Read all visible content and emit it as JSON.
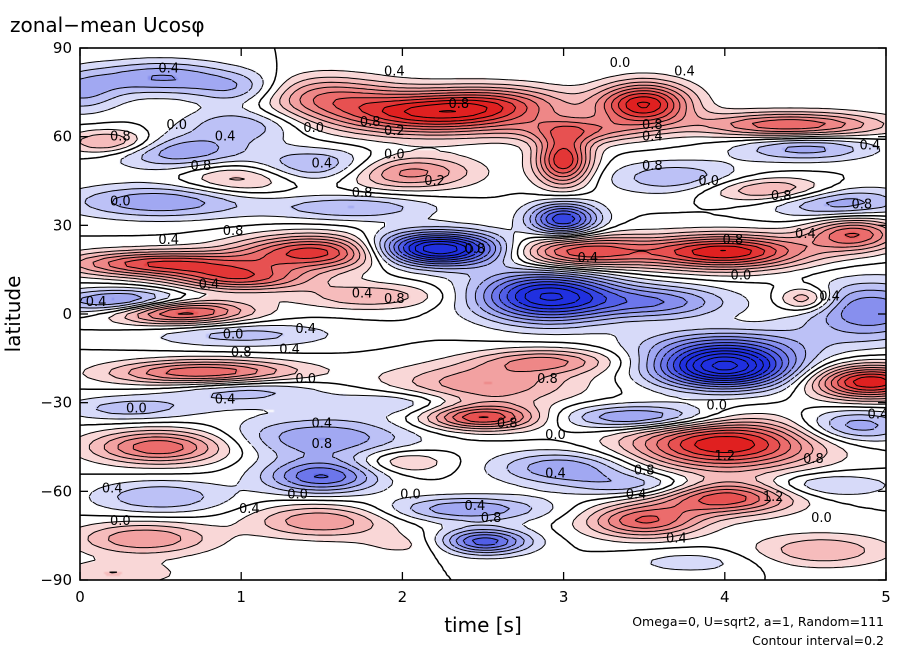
{
  "chart_data": {
    "type": "heatmap",
    "title": "zonal−mean Ucosφ",
    "xlabel": "time [s]",
    "ylabel": "latitude",
    "xlim": [
      0,
      5
    ],
    "ylim": [
      -90,
      90
    ],
    "x_ticks": [
      0,
      1,
      2,
      3,
      4,
      5
    ],
    "y_ticks": [
      90,
      60,
      30,
      0,
      -30,
      -60,
      -90
    ],
    "x_tick_labels": [
      "0",
      "1",
      "2",
      "3",
      "4",
      "5"
    ],
    "y_tick_labels": [
      "90",
      "60",
      "30",
      "0",
      "−30",
      "−60",
      "−90"
    ],
    "contour_interval": 0.2,
    "positive_color": "#e02020",
    "negative_color": "#2030e0",
    "negative_contours_dashed": true,
    "grid": false,
    "annotation_lines": [
      "Omega=0, U=sqrt2, a=1, Random=111",
      "Contour interval=0.2"
    ],
    "features": [
      {
        "t": 0.0,
        "lat": 75,
        "value": -0.6,
        "st": 0.18,
        "slat": 5
      },
      {
        "t": 0.5,
        "lat": 80,
        "value": -0.8,
        "st": 0.3,
        "slat": 4
      },
      {
        "t": 1.0,
        "lat": 76,
        "value": -0.6,
        "st": 0.2,
        "slat": 4
      },
      {
        "t": 1.0,
        "lat": 64,
        "value": -0.6,
        "st": 0.25,
        "slat": 4
      },
      {
        "t": 1.5,
        "lat": 74,
        "value": 0.8,
        "st": 0.3,
        "slat": 5
      },
      {
        "t": 2.2,
        "lat": 68,
        "value": 1.8,
        "st": 0.45,
        "slat": 5
      },
      {
        "t": 2.6,
        "lat": 72,
        "value": 0.6,
        "st": 0.3,
        "slat": 4
      },
      {
        "t": 3.5,
        "lat": 71,
        "value": 1.8,
        "st": 0.2,
        "slat": 5
      },
      {
        "t": 3.1,
        "lat": 62,
        "value": 0.8,
        "st": 0.25,
        "slat": 3
      },
      {
        "t": 4.4,
        "lat": 64,
        "value": 1.2,
        "st": 0.4,
        "slat": 3
      },
      {
        "t": 4.5,
        "lat": 56,
        "value": -0.7,
        "st": 0.3,
        "slat": 3
      },
      {
        "t": 3.0,
        "lat": 52,
        "value": 1.6,
        "st": 0.12,
        "slat": 6
      },
      {
        "t": 2.0,
        "lat": 48,
        "value": 1.0,
        "st": 0.3,
        "slat": 4
      },
      {
        "t": 1.5,
        "lat": 50,
        "value": -0.8,
        "st": 0.3,
        "slat": 4
      },
      {
        "t": 0.6,
        "lat": 55,
        "value": -0.8,
        "st": 0.3,
        "slat": 4
      },
      {
        "t": 0.2,
        "lat": 58,
        "value": 0.8,
        "st": 0.2,
        "slat": 3
      },
      {
        "t": 1.0,
        "lat": 46,
        "value": 0.6,
        "st": 0.25,
        "slat": 4
      },
      {
        "t": 3.7,
        "lat": 46,
        "value": -0.6,
        "st": 0.3,
        "slat": 4
      },
      {
        "t": 4.3,
        "lat": 42,
        "value": 0.8,
        "st": 0.3,
        "slat": 3
      },
      {
        "t": 4.7,
        "lat": 38,
        "value": -0.8,
        "st": 0.3,
        "slat": 4
      },
      {
        "t": 0.5,
        "lat": 38,
        "value": -0.8,
        "st": 0.4,
        "slat": 4
      },
      {
        "t": 3.0,
        "lat": 32,
        "value": -1.6,
        "st": 0.15,
        "slat": 4
      },
      {
        "t": 1.7,
        "lat": 36,
        "value": -0.6,
        "st": 0.35,
        "slat": 3
      },
      {
        "t": 1.5,
        "lat": 21,
        "value": 1.6,
        "st": 0.35,
        "slat": 4
      },
      {
        "t": 2.2,
        "lat": 22,
        "value": -2.4,
        "st": 0.3,
        "slat": 4
      },
      {
        "t": 3.1,
        "lat": 21,
        "value": 1.4,
        "st": 0.3,
        "slat": 4
      },
      {
        "t": 4.0,
        "lat": 21,
        "value": 1.8,
        "st": 0.35,
        "slat": 4
      },
      {
        "t": 4.8,
        "lat": 27,
        "value": 1.2,
        "st": 0.2,
        "slat": 4
      },
      {
        "t": 0.5,
        "lat": 17,
        "value": 1.4,
        "st": 0.4,
        "slat": 3
      },
      {
        "t": 1.0,
        "lat": 12,
        "value": 1.2,
        "st": 0.3,
        "slat": 3
      },
      {
        "t": 0.3,
        "lat": 4,
        "value": -1.2,
        "st": 0.3,
        "slat": 3
      },
      {
        "t": 0.6,
        "lat": 1,
        "value": 1.6,
        "st": 0.3,
        "slat": 3
      },
      {
        "t": 1.8,
        "lat": 6,
        "value": 0.6,
        "st": 0.3,
        "slat": 3
      },
      {
        "t": 2.9,
        "lat": 6,
        "value": -2.0,
        "st": 0.3,
        "slat": 6
      },
      {
        "t": 3.6,
        "lat": 4,
        "value": -0.9,
        "st": 0.3,
        "slat": 4
      },
      {
        "t": 4.5,
        "lat": 5,
        "value": 0.8,
        "st": 0.12,
        "slat": 3
      },
      {
        "t": 4.9,
        "lat": 1,
        "value": -1.0,
        "st": 0.3,
        "slat": 7
      },
      {
        "t": 4.0,
        "lat": -10,
        "value": -0.6,
        "st": 0.4,
        "slat": 4
      },
      {
        "t": 1.0,
        "lat": -7,
        "value": -0.5,
        "st": 0.4,
        "slat": 3
      },
      {
        "t": 2.9,
        "lat": -16,
        "value": 0.8,
        "st": 0.3,
        "slat": 3
      },
      {
        "t": 4.0,
        "lat": -18,
        "value": -2.4,
        "st": 0.3,
        "slat": 5
      },
      {
        "t": 4.9,
        "lat": -23,
        "value": 1.8,
        "st": 0.25,
        "slat": 4
      },
      {
        "t": 0.8,
        "lat": -20,
        "value": 1.4,
        "st": 0.4,
        "slat": 3
      },
      {
        "t": 1.0,
        "lat": -25,
        "value": -0.6,
        "st": 0.35,
        "slat": 4
      },
      {
        "t": 2.5,
        "lat": -24,
        "value": 0.8,
        "st": 0.4,
        "slat": 5
      },
      {
        "t": 2.0,
        "lat": -30,
        "value": -0.5,
        "st": 0.3,
        "slat": 3
      },
      {
        "t": 0.3,
        "lat": -32,
        "value": -0.5,
        "st": 0.3,
        "slat": 3
      },
      {
        "t": 2.5,
        "lat": -35,
        "value": 1.4,
        "st": 0.25,
        "slat": 3
      },
      {
        "t": 3.5,
        "lat": -35,
        "value": -1.0,
        "st": 0.35,
        "slat": 3
      },
      {
        "t": 4.0,
        "lat": -44,
        "value": 1.8,
        "st": 0.4,
        "slat": 6
      },
      {
        "t": 4.8,
        "lat": -38,
        "value": -0.8,
        "st": 0.25,
        "slat": 4
      },
      {
        "t": 0.5,
        "lat": -45,
        "value": 1.2,
        "st": 0.3,
        "slat": 4
      },
      {
        "t": 1.5,
        "lat": -42,
        "value": -0.8,
        "st": 0.4,
        "slat": 5
      },
      {
        "t": 1.5,
        "lat": -55,
        "value": -1.2,
        "st": 0.25,
        "slat": 4
      },
      {
        "t": 2.0,
        "lat": -50,
        "value": 0.5,
        "st": 0.2,
        "slat": 3
      },
      {
        "t": 3.0,
        "lat": -52,
        "value": -0.8,
        "st": 0.3,
        "slat": 4
      },
      {
        "t": 3.5,
        "lat": -58,
        "value": -0.6,
        "st": 0.3,
        "slat": 3
      },
      {
        "t": 4.0,
        "lat": -62,
        "value": 1.4,
        "st": 0.3,
        "slat": 4
      },
      {
        "t": 3.5,
        "lat": -70,
        "value": 1.2,
        "st": 0.25,
        "slat": 4
      },
      {
        "t": 4.6,
        "lat": -58,
        "value": -0.5,
        "st": 0.3,
        "slat": 3
      },
      {
        "t": 0.5,
        "lat": -62,
        "value": -0.6,
        "st": 0.3,
        "slat": 4
      },
      {
        "t": 2.4,
        "lat": -66,
        "value": -0.8,
        "st": 0.35,
        "slat": 3
      },
      {
        "t": 2.5,
        "lat": -77,
        "value": -1.4,
        "st": 0.2,
        "slat": 3
      },
      {
        "t": 1.5,
        "lat": -70,
        "value": 0.8,
        "st": 0.3,
        "slat": 4
      },
      {
        "t": 0.4,
        "lat": -76,
        "value": 0.8,
        "st": 0.3,
        "slat": 4
      },
      {
        "t": 2.1,
        "lat": -78,
        "value": 0.3,
        "st": 0.25,
        "slat": 3
      },
      {
        "t": 4.6,
        "lat": -80,
        "value": 0.6,
        "st": 0.3,
        "slat": 4
      },
      {
        "t": 3.8,
        "lat": -84,
        "value": -0.3,
        "st": 0.3,
        "slat": 3
      },
      {
        "t": 0.2,
        "lat": -88,
        "value": 0.4,
        "st": 0.3,
        "slat": 3
      }
    ],
    "contour_labels": [
      {
        "text": "0.4",
        "t": 0.55,
        "lat": 83
      },
      {
        "text": "0.4",
        "t": 1.95,
        "lat": 82
      },
      {
        "text": "0.0",
        "t": 3.35,
        "lat": 85
      },
      {
        "text": "0.4",
        "t": 3.75,
        "lat": 82
      },
      {
        "text": "0.8",
        "t": 2.35,
        "lat": 71
      },
      {
        "text": "0.0",
        "t": 1.45,
        "lat": 63
      },
      {
        "text": "0.8",
        "t": 1.8,
        "lat": 65
      },
      {
        "text": "0.2",
        "t": 1.95,
        "lat": 62
      },
      {
        "text": "0.8",
        "t": 3.55,
        "lat": 64
      },
      {
        "text": "0.4",
        "t": 3.55,
        "lat": 60
      },
      {
        "text": "0.8",
        "t": 0.25,
        "lat": 60
      },
      {
        "text": "0.0",
        "t": 0.6,
        "lat": 64
      },
      {
        "text": "0.4",
        "t": 0.9,
        "lat": 60
      },
      {
        "text": "0.4",
        "t": 4.9,
        "lat": 57
      },
      {
        "text": "0.8",
        "t": 0.75,
        "lat": 50
      },
      {
        "text": "0.4",
        "t": 1.5,
        "lat": 51
      },
      {
        "text": "0.0",
        "t": 1.95,
        "lat": 54
      },
      {
        "text": "0.8",
        "t": 3.55,
        "lat": 50
      },
      {
        "text": "0.0",
        "t": 3.9,
        "lat": 45
      },
      {
        "text": "0.2",
        "t": 2.2,
        "lat": 45
      },
      {
        "text": "0.8",
        "t": 1.75,
        "lat": 41
      },
      {
        "text": "0.8",
        "t": 4.35,
        "lat": 40
      },
      {
        "text": "0.8",
        "t": 4.85,
        "lat": 37
      },
      {
        "text": "0.0",
        "t": 0.25,
        "lat": 38
      },
      {
        "text": "0.4",
        "t": 0.55,
        "lat": 25
      },
      {
        "text": "0.8",
        "t": 0.95,
        "lat": 28
      },
      {
        "text": "0.8",
        "t": 2.45,
        "lat": 22
      },
      {
        "text": "0.4",
        "t": 3.15,
        "lat": 19
      },
      {
        "text": "0.8",
        "t": 4.05,
        "lat": 25
      },
      {
        "text": "0.4",
        "t": 4.5,
        "lat": 27
      },
      {
        "text": "0.0",
        "t": 4.1,
        "lat": 13
      },
      {
        "text": "0.4",
        "t": 0.8,
        "lat": 10
      },
      {
        "text": "0.4",
        "t": 1.75,
        "lat": 7
      },
      {
        "text": "0.8",
        "t": 1.95,
        "lat": 5
      },
      {
        "text": "0.4",
        "t": 4.65,
        "lat": 6
      },
      {
        "text": "0.4",
        "t": 0.1,
        "lat": 4
      },
      {
        "text": "0.0",
        "t": 0.95,
        "lat": -7
      },
      {
        "text": "0.4",
        "t": 1.4,
        "lat": -5
      },
      {
        "text": "0.8",
        "t": 1.0,
        "lat": -13
      },
      {
        "text": "0.4",
        "t": 1.3,
        "lat": -12
      },
      {
        "text": "0.0",
        "t": 1.4,
        "lat": -22
      },
      {
        "text": "0.8",
        "t": 2.9,
        "lat": -22
      },
      {
        "text": "0.0",
        "t": 0.35,
        "lat": -32
      },
      {
        "text": "0.4",
        "t": 0.9,
        "lat": -29
      },
      {
        "text": "0.4",
        "t": 1.5,
        "lat": -37
      },
      {
        "text": "0.8",
        "t": 2.65,
        "lat": -37
      },
      {
        "text": "0.0",
        "t": 2.95,
        "lat": -41
      },
      {
        "text": "0.0",
        "t": 3.95,
        "lat": -31
      },
      {
        "text": "0.4",
        "t": 4.95,
        "lat": -34
      },
      {
        "text": "0.8",
        "t": 1.5,
        "lat": -44
      },
      {
        "text": "1.2",
        "t": 4.0,
        "lat": -48
      },
      {
        "text": "0.8",
        "t": 4.55,
        "lat": -49
      },
      {
        "text": "0.4",
        "t": 2.95,
        "lat": -54
      },
      {
        "text": "0.8",
        "t": 3.5,
        "lat": -53
      },
      {
        "text": "0.4",
        "t": 0.2,
        "lat": -59
      },
      {
        "text": "0.0",
        "t": 1.35,
        "lat": -61
      },
      {
        "text": "0.0",
        "t": 2.05,
        "lat": -61
      },
      {
        "text": "0.4",
        "t": 1.05,
        "lat": -66
      },
      {
        "text": "0.4",
        "t": 2.45,
        "lat": -65
      },
      {
        "text": "0.8",
        "t": 2.55,
        "lat": -69
      },
      {
        "text": "0.4",
        "t": 3.45,
        "lat": -61
      },
      {
        "text": "1.2",
        "t": 4.3,
        "lat": -62
      },
      {
        "text": "0.0",
        "t": 4.6,
        "lat": -69
      },
      {
        "text": "0.0",
        "t": 0.25,
        "lat": -70
      },
      {
        "text": "0.4",
        "t": 3.7,
        "lat": -76
      }
    ]
  }
}
